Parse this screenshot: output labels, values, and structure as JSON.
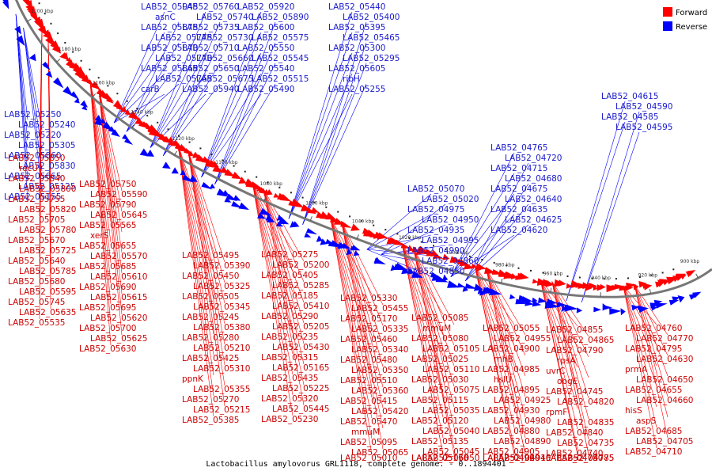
{
  "legend": {
    "forward_label": "Forward",
    "reverse_label": "Reverse",
    "forward_color": "#ff0000",
    "reverse_color": "#0000ff"
  },
  "caption": "Lactobacillus amylovorus GRL1118, complete genome. - 0..1894401",
  "ticks": [
    "1200 kbp",
    "1180 kbp",
    "1160 kbp",
    "1140 kbp",
    "1120 kbp",
    "1100 kbp",
    "1080 kbp",
    "1060 kbp",
    "1040 kbp",
    "1020 kbp",
    "1000 kbp",
    "980 kbp",
    "960 kbp",
    "940 kbp",
    "920 kbp",
    "900 kbp"
  ],
  "blue_labels": [
    "LAB52_05945",
    "asnC",
    "LAB52_05875",
    "LAB52_05775",
    "LAB52_05870",
    "LAB52_05770",
    "LAB52_05865",
    "LAB52_05765",
    "carB",
    "LAB52_05760",
    "LAB52_05740",
    "LAB52_05735",
    "LAB52_05730",
    "LAB52_05710",
    "LAB52_05660",
    "LAB52_05650",
    "LAB52_05675",
    "LAB52_05940",
    "LAB52_05920",
    "LAB52_05890",
    "LAB52_05600",
    "LAB52_05575",
    "LAB52_05550",
    "LAB52_05545",
    "LAB52_05540",
    "LAB52_05515",
    "LAB52_05490",
    "LAB52_05440",
    "LAB52_05400",
    "LAB52_05395",
    "LAB52_05465",
    "LAB52_05300",
    "LAB52_05295",
    "LAB52_05605",
    "ribH",
    "LAB52_05255",
    "LAB52_05250",
    "LAB52_05240",
    "LAB52_05220",
    "LAB52_05305",
    "LAB52_05860",
    "LAB52_05830",
    "LAB52_05665",
    "LAB52_05125",
    "LAB52_05155",
    "LAB52_05070",
    "LAB52_05020",
    "LAB52_04975",
    "LAB52_04950",
    "LAB52_04935",
    "LAB52_04995",
    "LAB52_04990",
    "LAB52_04860",
    "LAB52_04850",
    "LAB52_04765",
    "LAB52_04720",
    "LAB52_04715",
    "LAB52_04680",
    "LAB52_04675",
    "LAB52_04640",
    "LAB52_04635",
    "LAB52_04625",
    "LAB52_04620",
    "LAB52_04615",
    "LAB52_04590",
    "LAB52_04585",
    "LAB52_04595"
  ],
  "red_labels": [
    "LAB52_05850",
    "recU",
    "LAB52_05840",
    "LAB52_05800",
    "LAB52_05755",
    "LAB52_05820",
    "LAB52_05705",
    "LAB52_05780",
    "LAB52_05670",
    "LAB52_05725",
    "LAB52_05640",
    "LAB52_05785",
    "LAB52_05680",
    "LAB52_05595",
    "LAB52_05745",
    "LAB52_05635",
    "LAB52_05535",
    "LAB52_05750",
    "LAB52_05590",
    "LAB52_05790",
    "LAB52_05645",
    "LAB52_05565",
    "xerS",
    "LAB52_05655",
    "LAB52_05570",
    "LAB52_05685",
    "LAB52_05610",
    "LAB52_05690",
    "LAB52_05615",
    "LAB52_05695",
    "LAB52_05620",
    "LAB52_05700",
    "LAB52_05625",
    "LAB52_05630",
    "LAB52_05495",
    "LAB52_05390",
    "LAB52_05450",
    "LAB52_05325",
    "LAB52_05505",
    "LAB52_05345",
    "LAB52_05245",
    "LAB52_05380",
    "LAB52_05280",
    "LAB52_05210",
    "LAB52_05425",
    "LAB52_05310",
    "ppnK",
    "LAB52_05355",
    "LAB52_05270",
    "LAB52_05215",
    "LAB52_05385",
    "LAB52_05275",
    "LAB52_05200",
    "LAB52_05405",
    "LAB52_05285",
    "LAB52_05185",
    "LAB52_05410",
    "LAB52_05290",
    "LAB52_05205",
    "LAB52_05235",
    "LAB52_05430",
    "LAB52_05315",
    "LAB52_05165",
    "LAB52_05435",
    "LAB52_05225",
    "LAB52_05320",
    "LAB52_05445",
    "LAB52_05230",
    "LAB52_05330",
    "LAB52_05455",
    "LAB52_05170",
    "LAB52_05335",
    "LAB52_05460",
    "LAB52_05340",
    "LAB52_05480",
    "LAB52_05350",
    "LAB52_05510",
    "LAB52_05360",
    "LAB52_05415",
    "LAB52_05420",
    "LAB52_05470",
    "mmuM",
    "LAB52_05095",
    "LAB52_05065",
    "LAB52_05010",
    "LAB52_05085",
    "mmuM",
    "LAB52_05080",
    "LAB52_05105",
    "LAB52_05025",
    "LAB52_05110",
    "LAB52_05030",
    "LAB52_05075",
    "LAB52_05115",
    "LAB52_05035",
    "LAB52_05120",
    "LAB52_05040",
    "LAB52_05135",
    "LAB52_05045",
    "LAB52_05160",
    "LAB52_05050",
    "LAB52_05175",
    "LAB52_05055",
    "LAB52_04955",
    "LAB52_04900",
    "rnhB",
    "LAB52_04985",
    "hslU",
    "LAB52_04895",
    "LAB52_04925",
    "LAB52_04930",
    "LAB52_04980",
    "LAB52_04880",
    "LAB52_04890",
    "LAB52_04905",
    "LAB52_04945",
    "LAB52_04960",
    "LAB52_04910",
    "LAB52_04920",
    "LAB52_04855",
    "LAB52_04865",
    "LAB52_04790",
    "rpsA",
    "uvrC",
    "obgE",
    "LAB52_04745",
    "LAB52_04820",
    "rpmF",
    "LAB52_04835",
    "LAB52_04840",
    "LAB52_04735",
    "LAB52_04740",
    "LAB52_04775",
    "LAB52_04780",
    "LAB52_04785",
    "LAB52_04750",
    "LAB52_04760",
    "LAB52_04770",
    "LAB52_04795",
    "LAB52_04630",
    "prmA",
    "LAB52_04650",
    "LAB52_04655",
    "LAB52_04660",
    "hisS",
    "aspS",
    "LAB52_04685",
    "LAB52_04705",
    "LAB52_04710"
  ]
}
